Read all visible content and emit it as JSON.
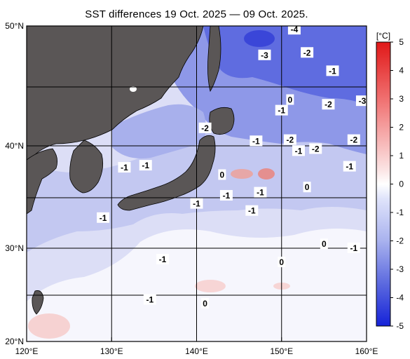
{
  "title": "SST differences 19 Oct. 2025 — 09 Oct. 2025.",
  "lon_ticks": [
    "120°E",
    "130°E",
    "140°E",
    "150°E",
    "160°E"
  ],
  "lat_ticks": [
    "50°N",
    "40°N",
    "30°N",
    "20°N"
  ],
  "colorbar": {
    "unit": "[°C]",
    "labels": [
      "5",
      "4",
      "3",
      "2",
      "1",
      "0",
      "-1",
      "-2",
      "-3",
      "-4",
      "-5"
    ]
  },
  "contour_labels": [
    {
      "text": "-4",
      "lon": 151.5,
      "lat": 49.7
    },
    {
      "text": "-3",
      "lon": 148.0,
      "lat": 47.6
    },
    {
      "text": "-2",
      "lon": 153.0,
      "lat": 47.8
    },
    {
      "text": "-1",
      "lon": 156.0,
      "lat": 46.3
    },
    {
      "text": "0",
      "lon": 151.0,
      "lat": 43.9
    },
    {
      "text": "-1",
      "lon": 150.0,
      "lat": 43.0
    },
    {
      "text": "-2",
      "lon": 155.5,
      "lat": 43.5
    },
    {
      "text": "-3",
      "lon": 159.5,
      "lat": 43.8
    },
    {
      "text": "-2",
      "lon": 141.0,
      "lat": 41.5
    },
    {
      "text": "-1",
      "lon": 147.0,
      "lat": 40.4
    },
    {
      "text": "-2",
      "lon": 151.0,
      "lat": 40.5
    },
    {
      "text": "-2",
      "lon": 158.5,
      "lat": 40.5
    },
    {
      "text": "-1",
      "lon": 152.0,
      "lat": 39.5
    },
    {
      "text": "-2",
      "lon": 154.0,
      "lat": 39.7
    },
    {
      "text": "-1",
      "lon": 158.0,
      "lat": 38.0
    },
    {
      "text": "-1",
      "lon": 131.5,
      "lat": 37.9
    },
    {
      "text": "-1",
      "lon": 134.0,
      "lat": 38.1
    },
    {
      "text": "0",
      "lon": 143.0,
      "lat": 37.2
    },
    {
      "text": "0",
      "lon": 153.0,
      "lat": 36.0
    },
    {
      "text": "-1",
      "lon": 143.5,
      "lat": 35.2
    },
    {
      "text": "-1",
      "lon": 147.5,
      "lat": 35.5
    },
    {
      "text": "-1",
      "lon": 140.0,
      "lat": 34.4
    },
    {
      "text": "-1",
      "lon": 146.5,
      "lat": 33.7
    },
    {
      "text": "-1",
      "lon": 129.0,
      "lat": 33.0
    },
    {
      "text": "0",
      "lon": 155.0,
      "lat": 30.4
    },
    {
      "text": "-1",
      "lon": 158.5,
      "lat": 30.0
    },
    {
      "text": "-1",
      "lon": 136.0,
      "lat": 28.8
    },
    {
      "text": "0",
      "lon": 150.0,
      "lat": 28.5
    },
    {
      "text": "-1",
      "lon": 134.5,
      "lat": 24.5
    },
    {
      "text": "0",
      "lon": 141.0,
      "lat": 24.1
    }
  ]
}
